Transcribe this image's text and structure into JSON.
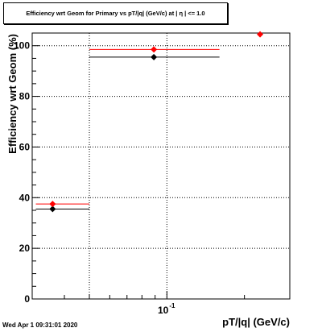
{
  "chart_data": {
    "type": "scatter",
    "title": "Efficiency wrt Geom for Primary vs pT/|q| (GeV/c) at | η | <= 1.0",
    "xlabel": "pT/|q| (GeV/c)",
    "ylabel": "Efficiency wrt Geom (%)",
    "x_scale": "log",
    "xlim": [
      0.03,
      0.3
    ],
    "ylim": [
      0,
      105
    ],
    "x_tick_label": "10",
    "x_tick_exponent": "-1",
    "y_ticks": [
      "0",
      "20",
      "40",
      "60",
      "80",
      "100"
    ],
    "y_tick_values": [
      0,
      20,
      40,
      60,
      80,
      100
    ],
    "grid": true,
    "series": [
      {
        "color": "#000000",
        "points": [
          {
            "x": 0.036,
            "xlo": 0.031,
            "xhi": 0.05,
            "y": 35.5
          },
          {
            "x": 0.089,
            "xlo": 0.05,
            "xhi": 0.16,
            "y": 95.5
          }
        ]
      },
      {
        "color": "#ff0000",
        "points": [
          {
            "x": 0.036,
            "xlo": 0.031,
            "xhi": 0.05,
            "y": 37.5
          },
          {
            "x": 0.089,
            "xlo": 0.05,
            "xhi": 0.16,
            "y": 98.5
          },
          {
            "x": 0.23,
            "xlo": 0.23,
            "xhi": 0.23,
            "y": 104.5
          }
        ]
      }
    ]
  },
  "footer": {
    "timestamp": "Wed Apr  1 09:31:01 2020"
  }
}
